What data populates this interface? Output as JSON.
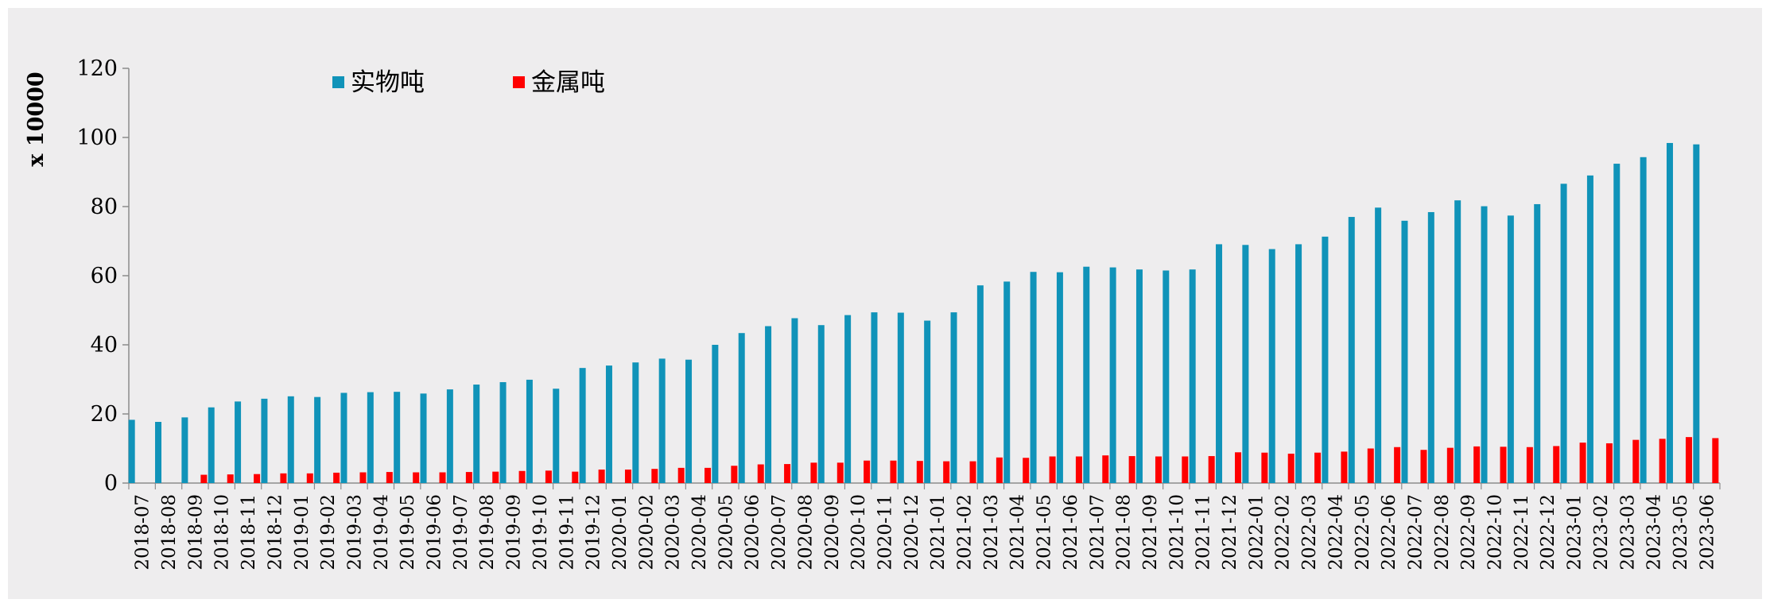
{
  "chart_data": {
    "type": "bar",
    "title": "",
    "ylabel": "x 10000",
    "xlabel": "",
    "ylim": [
      0,
      120
    ],
    "yticks": [
      0,
      20,
      40,
      60,
      80,
      100,
      120
    ],
    "grid": false,
    "legend_position": "top-left",
    "categories": [
      "2018-07",
      "2018-08",
      "2018-09",
      "2018-10",
      "2018-11",
      "2018-12",
      "2019-01",
      "2019-02",
      "2019-03",
      "2019-04",
      "2019-05",
      "2019-06",
      "2019-07",
      "2019-08",
      "2019-09",
      "2019-10",
      "2019-11",
      "2019-12",
      "2020-01",
      "2020-02",
      "2020-03",
      "2020-04",
      "2020-05",
      "2020-06",
      "2020-07",
      "2020-08",
      "2020-09",
      "2020-10",
      "2020-11",
      "2020-12",
      "2021-01",
      "2021-02",
      "2021-03",
      "2021-04",
      "2021-05",
      "2021-06",
      "2021-07",
      "2021-08",
      "2021-09",
      "2021-10",
      "2021-11",
      "2021-12",
      "2022-01",
      "2022-02",
      "2022-03",
      "2022-04",
      "2022-05",
      "2022-06",
      "2022-07",
      "2022-08",
      "2022-09",
      "2022-10",
      "2022-11",
      "2022-12",
      "2023-01",
      "2023-02",
      "2023-03",
      "2023-04",
      "2023-05",
      "2023-06"
    ],
    "series": [
      {
        "name": "实物吨",
        "color": "#1093B9",
        "values": [
          18.3,
          17.7,
          19.0,
          21.9,
          23.6,
          24.4,
          25.1,
          24.9,
          26.1,
          26.3,
          26.4,
          25.9,
          27.1,
          28.5,
          29.2,
          29.9,
          27.3,
          33.3,
          34.0,
          34.9,
          36.0,
          35.7,
          40.0,
          43.4,
          45.4,
          47.7,
          45.7,
          48.6,
          49.4,
          49.3,
          47.0,
          49.4,
          57.2,
          58.3,
          61.1,
          61.0,
          62.6,
          62.4,
          61.8,
          61.5,
          61.8,
          69.1,
          68.9,
          67.7,
          69.1,
          71.3,
          77.0,
          79.7,
          75.9,
          78.4,
          81.8,
          80.1,
          77.4,
          80.7,
          86.6,
          89.0,
          92.4,
          94.3,
          98.4,
          98.0
        ]
      },
      {
        "name": "金属吨",
        "color": "#FF0000",
        "values": [
          0,
          0,
          2.4,
          2.5,
          2.6,
          2.8,
          2.8,
          3.0,
          3.1,
          3.2,
          3.1,
          3.1,
          3.2,
          3.3,
          3.5,
          3.6,
          3.3,
          3.9,
          3.9,
          4.1,
          4.4,
          4.4,
          5.0,
          5.4,
          5.5,
          5.9,
          5.9,
          6.5,
          6.5,
          6.4,
          6.3,
          6.3,
          7.4,
          7.3,
          7.7,
          7.7,
          8.0,
          7.8,
          7.7,
          7.7,
          7.8,
          8.9,
          8.8,
          8.5,
          8.8,
          9.1,
          10.0,
          10.4,
          9.6,
          10.2,
          10.6,
          10.5,
          10.4,
          10.7,
          11.7,
          11.5,
          12.5,
          12.8,
          13.3,
          13.0
        ]
      }
    ]
  }
}
